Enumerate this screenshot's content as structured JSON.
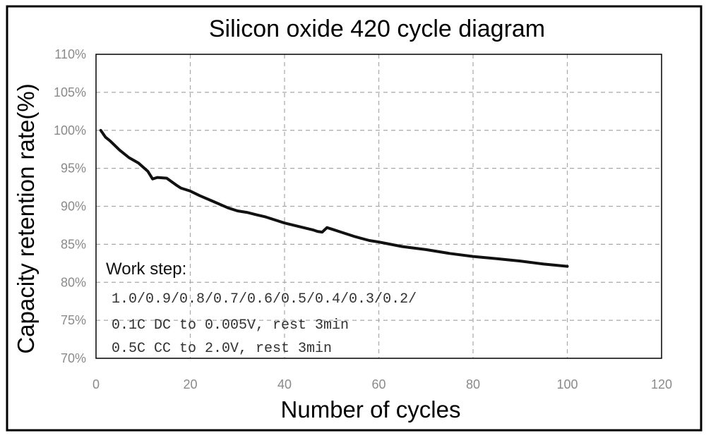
{
  "chart_data": {
    "type": "line",
    "title": "Silicon oxide 420 cycle diagram",
    "xlabel": "Number of cycles",
    "ylabel": "Capacity retention rate(%)",
    "xlim": [
      0,
      120
    ],
    "ylim": [
      70,
      110
    ],
    "x_ticks": [
      "0",
      "20",
      "40",
      "60",
      "80",
      "100",
      "120"
    ],
    "y_ticks": [
      "70%",
      "75%",
      "80%",
      "85%",
      "90%",
      "95%",
      "100%",
      "105%",
      "110%"
    ],
    "grid": true,
    "series": [
      {
        "x": [
          1,
          2,
          3,
          5,
          7,
          9,
          11,
          12,
          13,
          15,
          17,
          18,
          20,
          22,
          25,
          28,
          30,
          32,
          34,
          36,
          38,
          40,
          42,
          44,
          46,
          47,
          48,
          49,
          50,
          52,
          55,
          58,
          60,
          65,
          70,
          75,
          80,
          85,
          90,
          95,
          100
        ],
        "y": [
          100.0,
          99.1,
          98.6,
          97.4,
          96.4,
          95.7,
          94.6,
          93.6,
          93.8,
          93.7,
          92.8,
          92.4,
          92.0,
          91.4,
          90.6,
          89.8,
          89.4,
          89.2,
          88.9,
          88.6,
          88.2,
          87.8,
          87.5,
          87.2,
          86.9,
          86.7,
          86.6,
          87.2,
          87.0,
          86.6,
          86.0,
          85.5,
          85.3,
          84.7,
          84.3,
          83.8,
          83.4,
          83.1,
          82.8,
          82.4,
          82.1
        ],
        "color": "#111111"
      }
    ],
    "annotation": {
      "heading": "Work step:",
      "lines": [
        "1.0/0.9/0.8/0.7/0.6/0.5/0.4/0.3/0.2/",
        "0.1C DC to 0.005V, rest 3min",
        "0.5C CC to 2.0V, rest 3min"
      ]
    }
  }
}
